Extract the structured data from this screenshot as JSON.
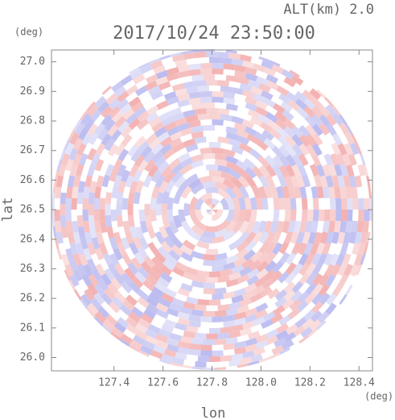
{
  "chart_data": {
    "type": "radar-ppi",
    "title": "2017/10/24 23:50:00",
    "altitude_label": "ALT(km) 2.0",
    "x_label": "lon",
    "y_label": "lat",
    "x_unit": "(deg)",
    "y_unit": "(deg)",
    "xlim": [
      127.145,
      128.455
    ],
    "ylim": [
      25.955,
      27.04
    ],
    "xticks": [
      127.4,
      127.6,
      127.8,
      {
        "value": 128,
        "label": "128.0"
      },
      128.2,
      128.4
    ],
    "yticks": [
      {
        "value": 26,
        "label": "26.0"
      },
      26.1,
      26.2,
      26.3,
      26.4,
      26.5,
      26.6,
      26.7,
      26.8,
      26.9,
      {
        "value": 27,
        "label": "27.0"
      }
    ]
  }
}
